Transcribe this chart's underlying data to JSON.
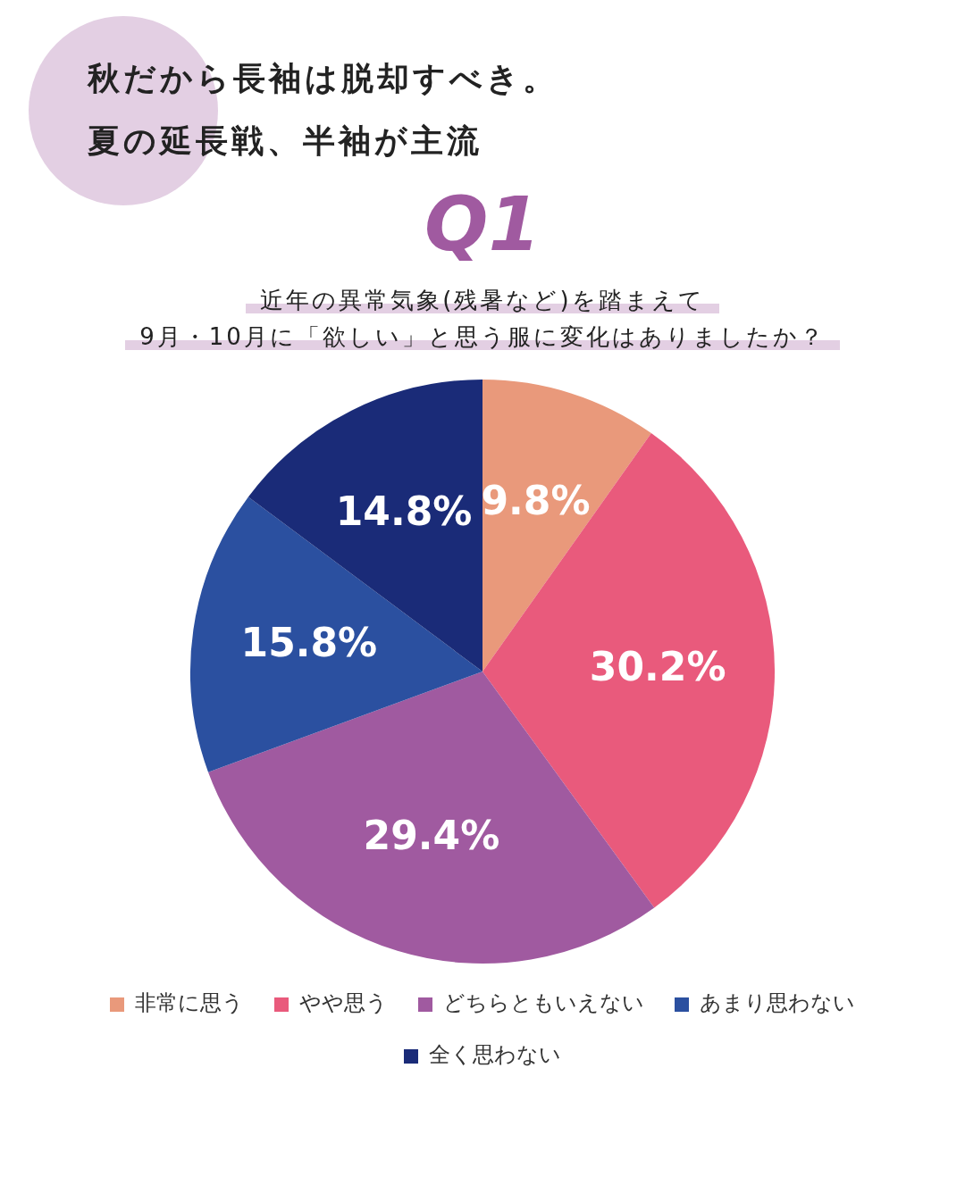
{
  "chart_data": {
    "type": "pie",
    "title": "秋だから長袖は脱却すべき。夏の延長戦、半袖が主流",
    "subtitle": "近年の異常気象(残暑など)を踏まえて\n9月・10月に「欲しい」と思う服に変化はありましたか？",
    "annotations": [
      "Q1"
    ],
    "categories": [
      "非常に思う",
      "やや思う",
      "どちらともいえない",
      "あまり思わない",
      "全く思わない"
    ],
    "values": [
      9.8,
      30.2,
      29.4,
      15.8,
      14.8
    ],
    "colors": [
      "#e9997b",
      "#e95a7c",
      "#a05aa0",
      "#2b50a0",
      "#1a2b78"
    ],
    "value_labels": [
      "9.8%",
      "30.2%",
      "29.4%",
      "15.8%",
      "14.8%"
    ],
    "legend": "bottom"
  }
}
